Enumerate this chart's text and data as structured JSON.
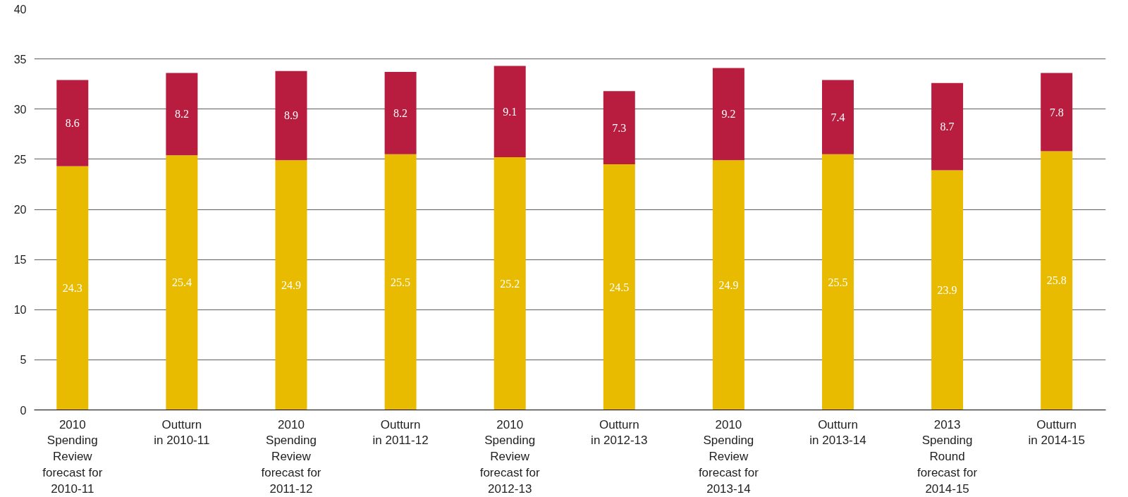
{
  "chart_data": {
    "type": "bar",
    "stacked": true,
    "data_labels": true,
    "grid": "y",
    "categories": [
      "2010\nSpending\nReview\nforecast for\n2010-11",
      "Outturn\nin 2010-11",
      "2010\nSpending\nReview\nforecast for\n2011-12",
      "Outturn\nin 2011-12",
      "2010\nSpending\nReview\nforecast for\n2012-13",
      "Outturn\nin 2012-13",
      "2010\nSpending\nReview\nforecast for\n2013-14",
      "Outturn\nin 2013-14",
      "2013\nSpending\nRound\nforecast for\n2014-15",
      "Outturn\nin 2014-15"
    ],
    "series": [
      {
        "color": "#e9bb00",
        "values": [
          24.3,
          25.4,
          24.9,
          25.5,
          25.2,
          24.5,
          24.9,
          25.5,
          23.9,
          25.8
        ]
      },
      {
        "color": "#b81c3e",
        "values": [
          8.6,
          8.2,
          8.9,
          8.2,
          9.1,
          7.3,
          9.2,
          7.4,
          8.7,
          7.8
        ]
      }
    ],
    "ylim": [
      0,
      40
    ],
    "yticks": [
      0,
      5,
      10,
      15,
      20,
      25,
      30,
      35,
      40
    ]
  }
}
